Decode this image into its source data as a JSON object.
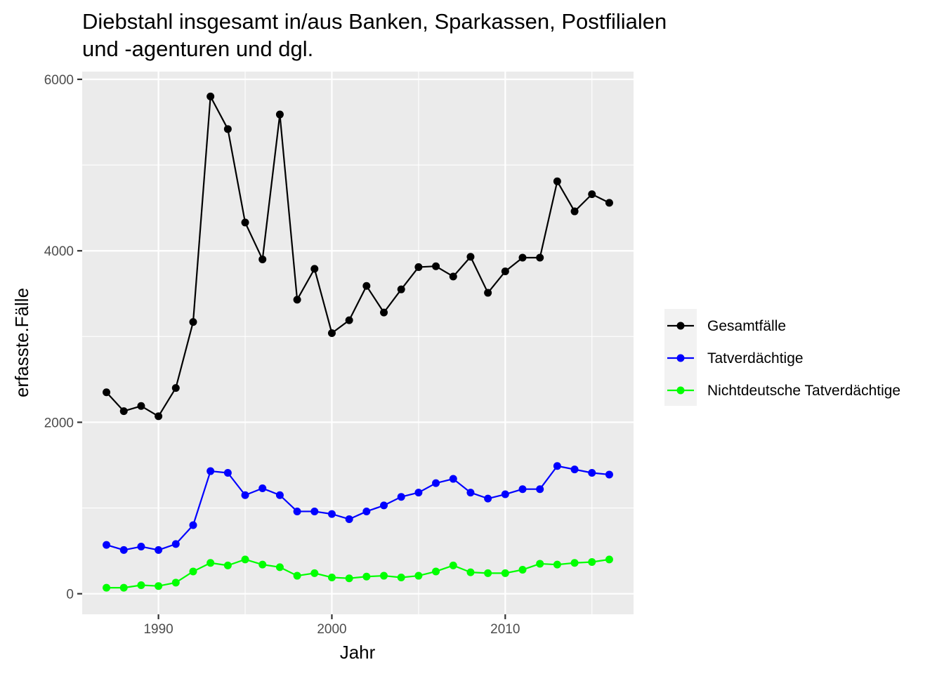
{
  "chart_data": {
    "type": "line",
    "title": "Diebstahl insgesamt in/aus Banken, Sparkassen, Postfilialen und -agenturen und dgl.",
    "title_lines": [
      "Diebstahl insgesamt in/aus Banken, Sparkassen, Postfilialen",
      "und -agenturen und dgl."
    ],
    "xlabel": "Jahr",
    "ylabel": "erfasste.Fälle",
    "xlim": [
      1985.6,
      2017.4
    ],
    "ylim": [
      -240,
      6090
    ],
    "x_ticks": [
      1990,
      2000,
      2010
    ],
    "x_tick_labels": [
      "1990",
      "2000",
      "2010"
    ],
    "y_ticks": [
      0,
      2000,
      4000,
      6000
    ],
    "y_tick_labels": [
      "0",
      "2000",
      "4000",
      "6000"
    ],
    "grid": true,
    "legend_position": "right",
    "x": [
      1987,
      1988,
      1989,
      1990,
      1991,
      1992,
      1993,
      1994,
      1995,
      1996,
      1997,
      1998,
      1999,
      2000,
      2001,
      2002,
      2003,
      2004,
      2005,
      2006,
      2007,
      2008,
      2009,
      2010,
      2011,
      2012,
      2013,
      2014,
      2015,
      2016
    ],
    "series": [
      {
        "name": "Gesamtfälle",
        "color": "#000000",
        "values": [
          2350,
          2130,
          2190,
          2070,
          2400,
          3170,
          5800,
          5420,
          4330,
          3900,
          5590,
          3430,
          3790,
          3040,
          3190,
          3590,
          3280,
          3550,
          3810,
          3820,
          3700,
          3930,
          3510,
          3760,
          3920,
          3920,
          4810,
          4460,
          4660,
          4560
        ]
      },
      {
        "name": "Tatverdächtige",
        "color": "#0000ff",
        "values": [
          570,
          510,
          550,
          510,
          580,
          800,
          1430,
          1410,
          1150,
          1230,
          1150,
          960,
          960,
          930,
          870,
          960,
          1030,
          1130,
          1180,
          1290,
          1340,
          1180,
          1110,
          1160,
          1220,
          1220,
          1490,
          1450,
          1410,
          1390
        ]
      },
      {
        "name": "Nichtdeutsche Tatverdächtige",
        "color": "#00ff00",
        "values": [
          70,
          70,
          100,
          90,
          130,
          260,
          360,
          330,
          400,
          340,
          310,
          210,
          240,
          190,
          180,
          200,
          210,
          190,
          210,
          260,
          330,
          250,
          240,
          240,
          280,
          350,
          340,
          360,
          370,
          400
        ]
      }
    ]
  }
}
